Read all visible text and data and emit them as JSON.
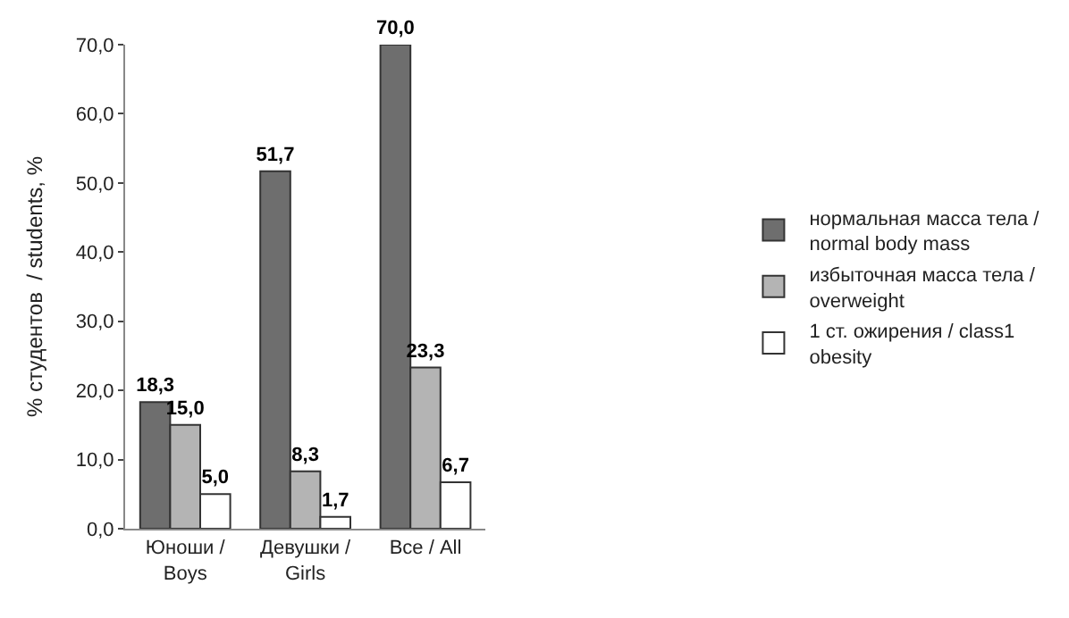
{
  "chart_data": {
    "type": "bar",
    "ylabel": "% студентов  / students, %",
    "categories": [
      "Юноши /\nBoys",
      "Девушки /\nGirls",
      "Все / All"
    ],
    "series": [
      {
        "name": "нормальная масса тела /\nnormal body mass",
        "color": "#6e6e6e",
        "values": [
          18.3,
          51.7,
          70.0
        ],
        "value_labels": [
          "18,3",
          "51,7",
          "70,0"
        ]
      },
      {
        "name": "избыточная масса тела /\noverweight",
        "color": "#b4b4b4",
        "values": [
          15.0,
          8.3,
          23.3
        ],
        "value_labels": [
          "15,0",
          "8,3",
          "23,3"
        ]
      },
      {
        "name": "1 ст. ожирения / class1\nobesity",
        "color": "#ffffff",
        "values": [
          5.0,
          1.7,
          6.7
        ],
        "value_labels": [
          "5,0",
          "1,7",
          "6,7"
        ]
      }
    ],
    "ylim": [
      0,
      70
    ],
    "yticks": [
      {
        "value": 0,
        "label": "0,0"
      },
      {
        "value": 10,
        "label": "10,0"
      },
      {
        "value": 20,
        "label": "20,0"
      },
      {
        "value": 30,
        "label": "30,0"
      },
      {
        "value": 40,
        "label": "40,0"
      },
      {
        "value": 50,
        "label": "50,0"
      },
      {
        "value": 60,
        "label": "60,0"
      },
      {
        "value": 70,
        "label": "70,0"
      }
    ],
    "legend": "right"
  }
}
